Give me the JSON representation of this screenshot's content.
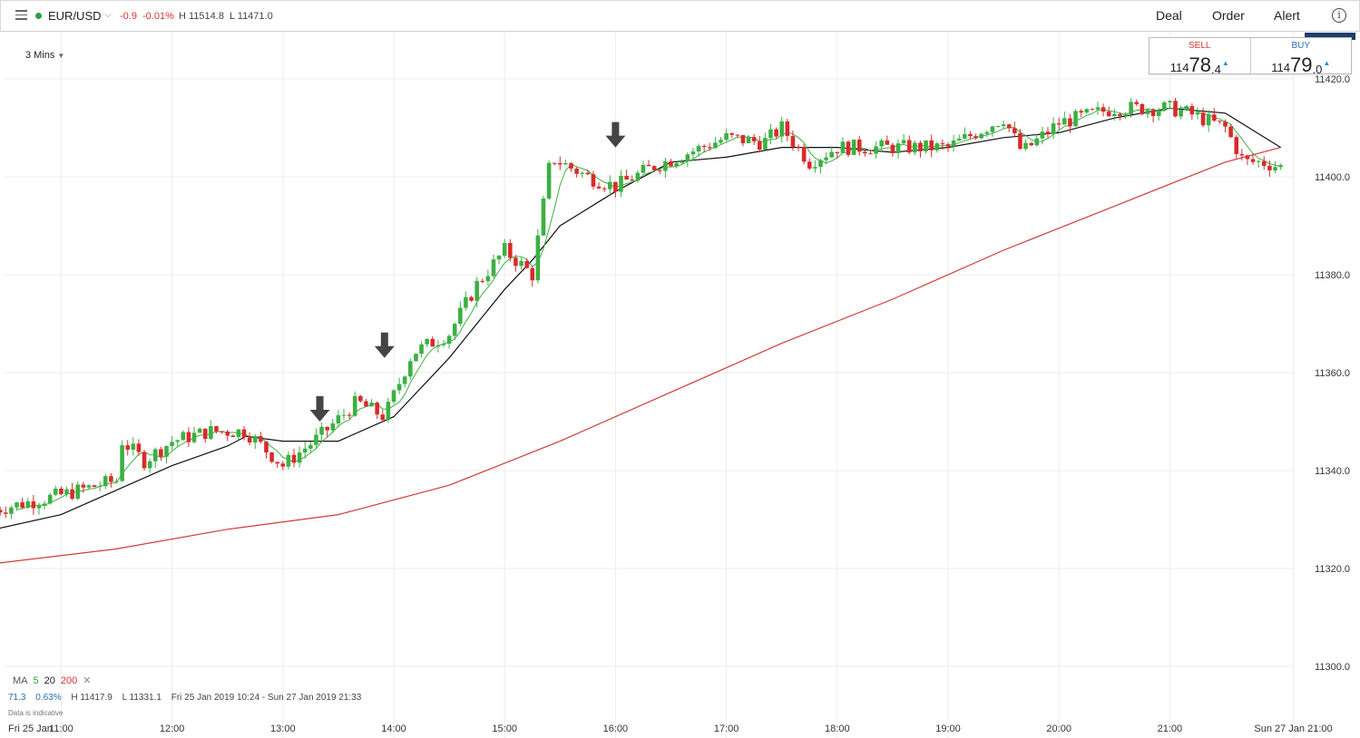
{
  "header": {
    "instrument": "EUR/USD",
    "change": "-0.9",
    "change_pct": "-0.01%",
    "high": "H 11514.8",
    "low": "L 11471.0",
    "deal": "Deal",
    "order": "Order",
    "alert": "Alert"
  },
  "timeframe": "3 Mins",
  "quote": {
    "sell_label": "SELL",
    "sell_small": "114",
    "sell_big": "78",
    "sell_sub": ".4",
    "buy_label": "BUY",
    "buy_small": "114",
    "buy_big": "79",
    "buy_sub": ".0"
  },
  "footer": {
    "ma_label": "MA",
    "ma5": "5",
    "ma20": "20",
    "ma200": "200",
    "remove": "✕",
    "range_value": "71.3",
    "range_pct": "0.63%",
    "range_high": "H 11417.9",
    "range_low": "L 11331.1",
    "range_dates": "Fri 25 Jan 2019 10:24 - Sun 27 Jan 2019 21:33",
    "indicative": "Data is indicative"
  },
  "colors": {
    "up": "#3cb043",
    "down": "#d92b2b",
    "ma5": "#3cb043",
    "ma20": "#111111",
    "ma200": "#d33b3b",
    "grid": "#ececec"
  },
  "chart_data": {
    "type": "candlestick",
    "instrument": "EUR/USD",
    "timeframe": "3 Mins",
    "ylim": [
      11293,
      11432
    ],
    "y_ticks": [
      "11300.0",
      "11320.0",
      "11340.0",
      "11360.0",
      "11380.0",
      "11400.0",
      "11420.0"
    ],
    "x_ticks": [
      "Fri 25 Jan",
      "11:00",
      "12:00",
      "13:00",
      "14:00",
      "15:00",
      "16:00",
      "17:00",
      "18:00",
      "19:00",
      "20:00",
      "21:00",
      "Sun 27 Jan 21:00"
    ],
    "close_waypoints": [
      {
        "t": "10:24",
        "v": 11332
      },
      {
        "t": "11:00",
        "v": 11335
      },
      {
        "t": "11:30",
        "v": 11338
      },
      {
        "t": "11:33",
        "v": 11346
      },
      {
        "t": "11:45",
        "v": 11342
      },
      {
        "t": "12:00",
        "v": 11346
      },
      {
        "t": "12:20",
        "v": 11348
      },
      {
        "t": "12:40",
        "v": 11348
      },
      {
        "t": "13:00",
        "v": 11341
      },
      {
        "t": "13:20",
        "v": 11347
      },
      {
        "t": "13:40",
        "v": 11354
      },
      {
        "t": "13:55",
        "v": 11351
      },
      {
        "t": "14:10",
        "v": 11364
      },
      {
        "t": "14:30",
        "v": 11368
      },
      {
        "t": "14:45",
        "v": 11378
      },
      {
        "t": "15:00",
        "v": 11385
      },
      {
        "t": "15:15",
        "v": 11380
      },
      {
        "t": "15:25",
        "v": 11404
      },
      {
        "t": "15:45",
        "v": 11400
      },
      {
        "t": "16:00",
        "v": 11398
      },
      {
        "t": "16:20",
        "v": 11402
      },
      {
        "t": "16:40",
        "v": 11405
      },
      {
        "t": "17:00",
        "v": 11408
      },
      {
        "t": "17:20",
        "v": 11407
      },
      {
        "t": "17:30",
        "v": 11410
      },
      {
        "t": "17:45",
        "v": 11403
      },
      {
        "t": "18:00",
        "v": 11406
      },
      {
        "t": "18:30",
        "v": 11406
      },
      {
        "t": "19:00",
        "v": 11406
      },
      {
        "t": "19:30",
        "v": 11412
      },
      {
        "t": "19:40",
        "v": 11405
      },
      {
        "t": "20:00",
        "v": 11411
      },
      {
        "t": "20:30",
        "v": 11414
      },
      {
        "t": "21:00",
        "v": 11414
      },
      {
        "t": "21:10",
        "v": 11413
      },
      {
        "t": "21:30",
        "v": 11410
      },
      {
        "t": "21:40",
        "v": 11403
      },
      {
        "t": "21:50",
        "v": 11403
      },
      {
        "t": "22:00",
        "v": 11402
      }
    ],
    "moving_averages": [
      {
        "period": 5,
        "color": "#3cb043"
      },
      {
        "period": 20,
        "color": "#111111",
        "points": [
          {
            "t": "10:24",
            "v": 11328
          },
          {
            "t": "11:00",
            "v": 11331
          },
          {
            "t": "11:30",
            "v": 11336
          },
          {
            "t": "12:00",
            "v": 11341
          },
          {
            "t": "12:30",
            "v": 11345
          },
          {
            "t": "12:40",
            "v": 11347
          },
          {
            "t": "13:00",
            "v": 11346
          },
          {
            "t": "13:30",
            "v": 11346
          },
          {
            "t": "14:00",
            "v": 11351
          },
          {
            "t": "14:30",
            "v": 11363
          },
          {
            "t": "15:00",
            "v": 11377
          },
          {
            "t": "15:15",
            "v": 11383
          },
          {
            "t": "15:30",
            "v": 11390
          },
          {
            "t": "16:00",
            "v": 11397
          },
          {
            "t": "16:30",
            "v": 11403
          },
          {
            "t": "17:00",
            "v": 11404
          },
          {
            "t": "17:30",
            "v": 11406
          },
          {
            "t": "18:00",
            "v": 11406
          },
          {
            "t": "18:30",
            "v": 11405
          },
          {
            "t": "19:00",
            "v": 11406
          },
          {
            "t": "19:30",
            "v": 11408
          },
          {
            "t": "20:00",
            "v": 11409
          },
          {
            "t": "20:30",
            "v": 11412
          },
          {
            "t": "21:00",
            "v": 11414
          },
          {
            "t": "21:30",
            "v": 11413
          },
          {
            "t": "22:00",
            "v": 11406
          }
        ]
      },
      {
        "period": 200,
        "color": "#d33b3b",
        "points": [
          {
            "t": "10:24",
            "v": 11321
          },
          {
            "t": "11:30",
            "v": 11324
          },
          {
            "t": "12:30",
            "v": 11328
          },
          {
            "t": "13:30",
            "v": 11331
          },
          {
            "t": "14:30",
            "v": 11337
          },
          {
            "t": "15:30",
            "v": 11346
          },
          {
            "t": "16:30",
            "v": 11356
          },
          {
            "t": "17:30",
            "v": 11366
          },
          {
            "t": "18:30",
            "v": 11375
          },
          {
            "t": "19:30",
            "v": 11385
          },
          {
            "t": "20:30",
            "v": 11394
          },
          {
            "t": "21:30",
            "v": 11403
          },
          {
            "t": "22:00",
            "v": 11406
          }
        ]
      }
    ],
    "annotation_arrows": [
      {
        "t": "13:20",
        "v": 11350
      },
      {
        "t": "13:55",
        "v": 11363
      },
      {
        "t": "16:00",
        "v": 11406
      }
    ]
  }
}
